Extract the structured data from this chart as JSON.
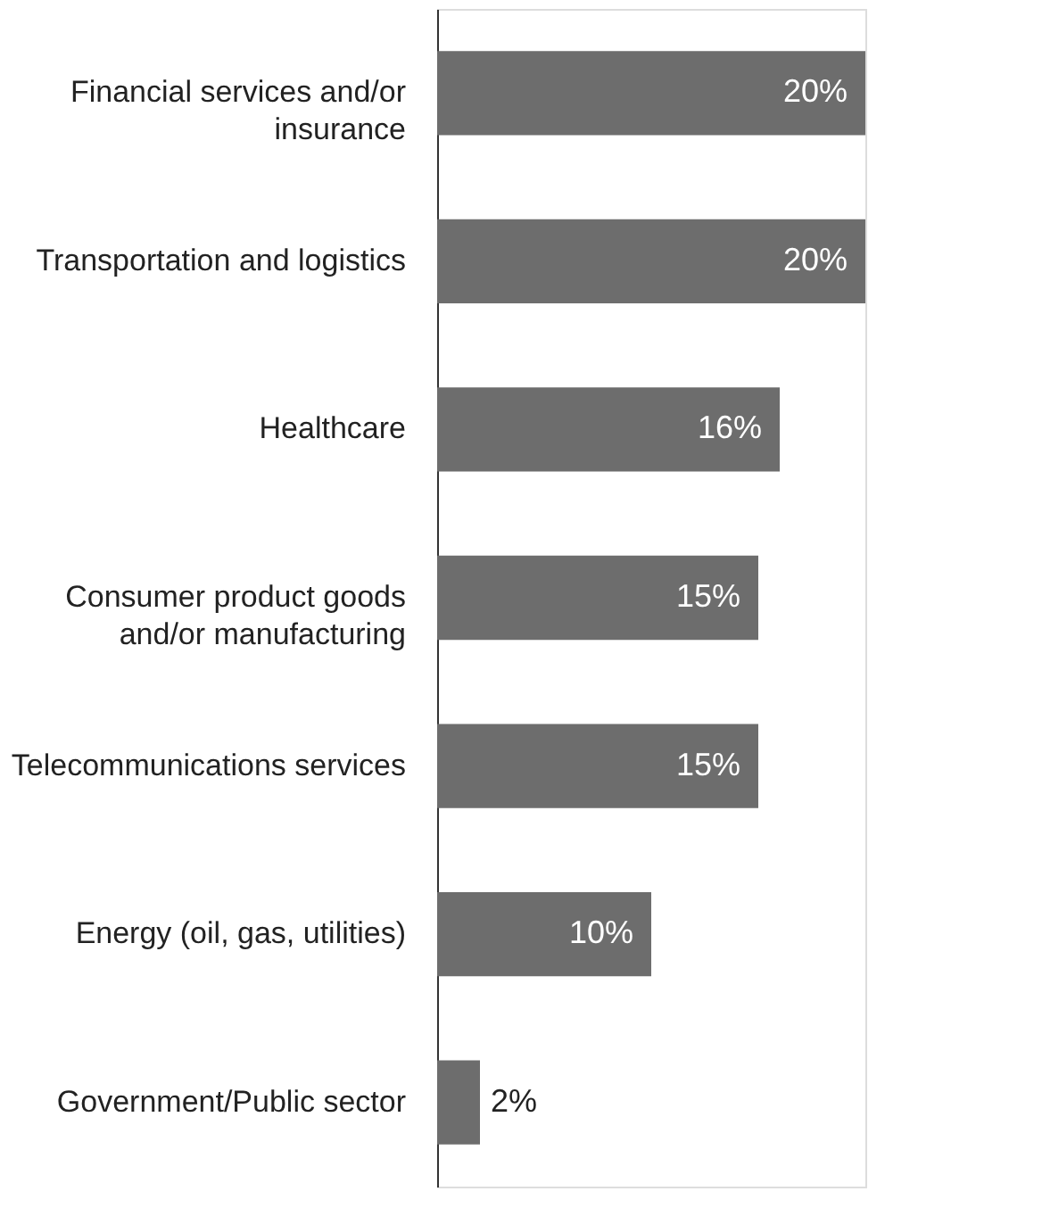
{
  "chart_data": {
    "type": "bar",
    "orientation": "horizontal",
    "categories": [
      "Financial services and/or insurance",
      "Transportation and logistics",
      "Healthcare",
      "Consumer product goods and/or manufacturing",
      "Telecommunications services",
      "Energy (oil, gas, utilities)",
      "Government/Public sector"
    ],
    "values": [
      20,
      20,
      16,
      15,
      15,
      10,
      2
    ],
    "value_labels": [
      "20%",
      "20%",
      "16%",
      "15%",
      "15%",
      "10%",
      "2%"
    ],
    "color": "#6d6d6d"
  }
}
